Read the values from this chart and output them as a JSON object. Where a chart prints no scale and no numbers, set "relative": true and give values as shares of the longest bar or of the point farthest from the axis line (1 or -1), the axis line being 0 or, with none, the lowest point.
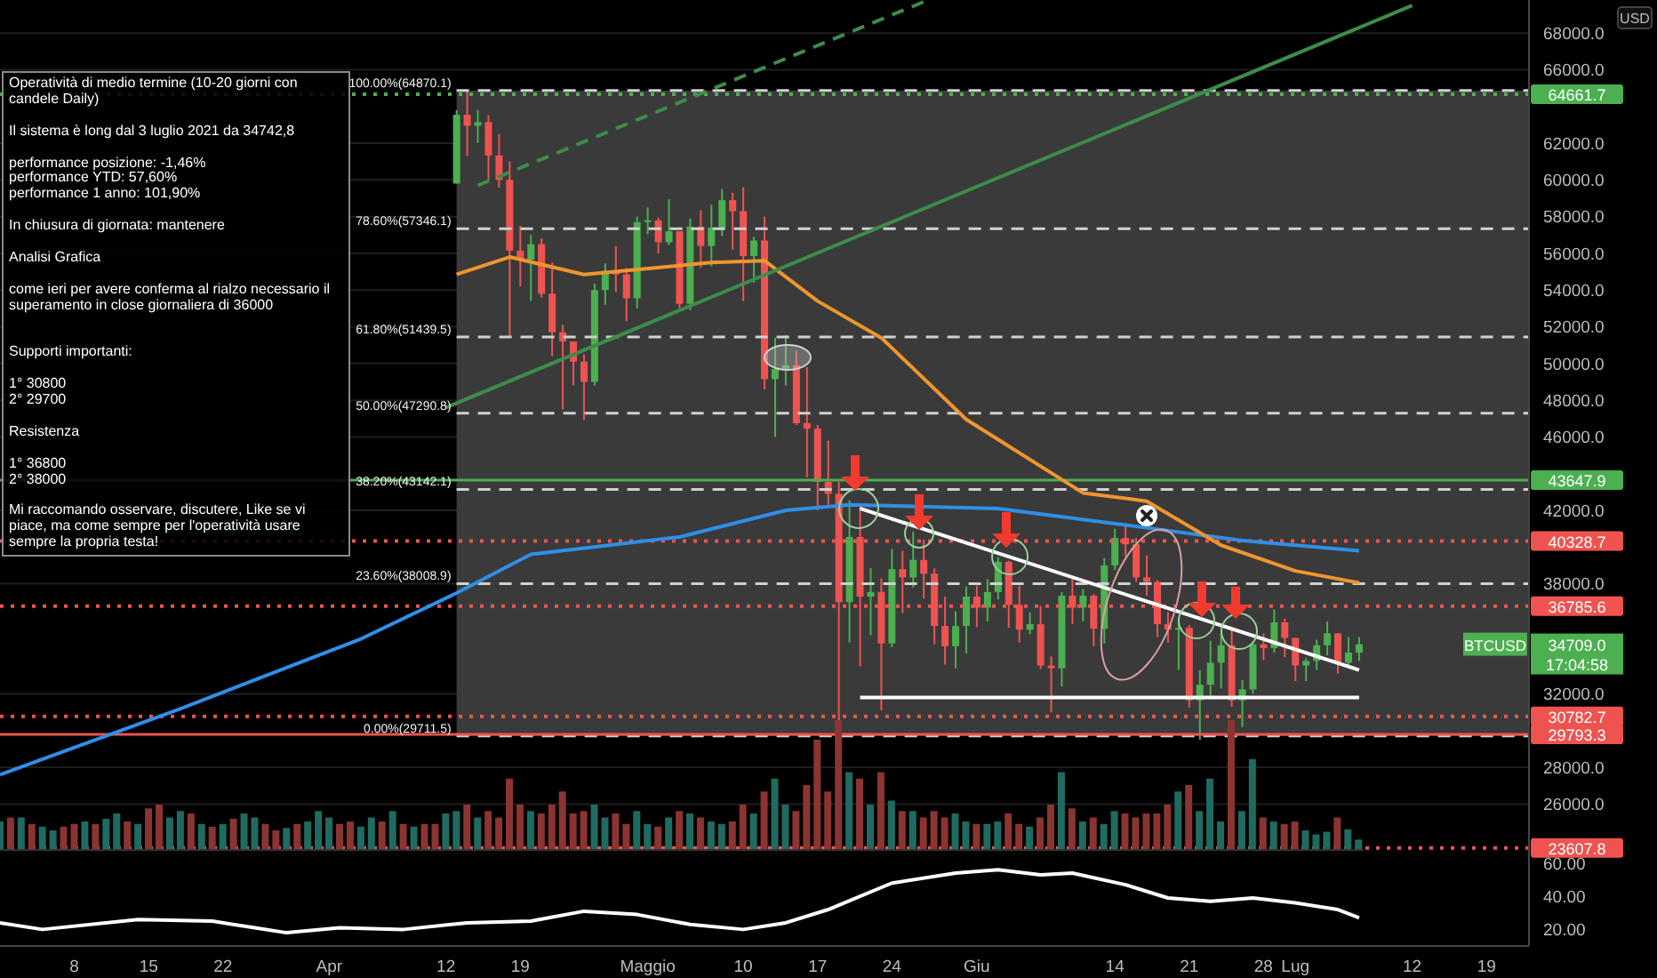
{
  "chart_data": [
    {
      "type": "candlestick",
      "ylabel": "USD",
      "grid": "y",
      "tick_labels": "y",
      "xlim": [
        "2021-03-01",
        "2021-07-23"
      ],
      "ylim": [
        23500,
        69800
      ],
      "yticks": [
        {
          "value": 26000,
          "label": "26000.0"
        },
        {
          "value": 28000,
          "label": "28000.0"
        },
        {
          "value": 32000,
          "label": "32000.0"
        },
        {
          "value": 38000,
          "label": "38000.0"
        },
        {
          "value": 42000,
          "label": "42000.0"
        },
        {
          "value": 46000,
          "label": "46000.0"
        },
        {
          "value": 48000,
          "label": "48000.0"
        },
        {
          "value": 50000,
          "label": "50000.0"
        },
        {
          "value": 52000,
          "label": "52000.0"
        },
        {
          "value": 54000,
          "label": "54000.0"
        },
        {
          "value": 56000,
          "label": "56000.0"
        },
        {
          "value": 58000,
          "label": "58000.0"
        },
        {
          "value": 60000,
          "label": "60000.0"
        },
        {
          "value": 62000,
          "label": "62000.0"
        },
        {
          "value": 66000,
          "label": "66000.0"
        },
        {
          "value": 68000,
          "label": "68000.0"
        }
      ],
      "x": [
        "2021-04-13",
        "2021-04-14",
        "2021-04-15",
        "2021-04-16",
        "2021-04-17",
        "2021-04-18",
        "2021-04-19",
        "2021-04-20",
        "2021-04-21",
        "2021-04-22",
        "2021-04-23",
        "2021-04-24",
        "2021-04-25",
        "2021-04-26",
        "2021-04-27",
        "2021-04-28",
        "2021-04-29",
        "2021-04-30",
        "2021-05-01",
        "2021-05-02",
        "2021-05-03",
        "2021-05-04",
        "2021-05-05",
        "2021-05-06",
        "2021-05-07",
        "2021-05-08",
        "2021-05-09",
        "2021-05-10",
        "2021-05-11",
        "2021-05-12",
        "2021-05-13",
        "2021-05-14",
        "2021-05-15",
        "2021-05-16",
        "2021-05-17",
        "2021-05-18",
        "2021-05-19",
        "2021-05-20",
        "2021-05-21",
        "2021-05-22",
        "2021-05-23",
        "2021-05-24",
        "2021-05-25",
        "2021-05-26",
        "2021-05-27",
        "2021-05-28",
        "2021-05-29",
        "2021-05-30",
        "2021-05-31",
        "2021-06-01",
        "2021-06-02",
        "2021-06-03",
        "2021-06-04",
        "2021-06-05",
        "2021-06-06",
        "2021-06-07",
        "2021-06-08",
        "2021-06-09",
        "2021-06-10",
        "2021-06-11",
        "2021-06-12",
        "2021-06-13",
        "2021-06-14",
        "2021-06-15",
        "2021-06-16",
        "2021-06-17",
        "2021-06-18",
        "2021-06-19",
        "2021-06-20",
        "2021-06-21",
        "2021-06-22",
        "2021-06-23",
        "2021-06-24",
        "2021-06-25",
        "2021-06-26",
        "2021-06-27",
        "2021-06-28",
        "2021-06-29",
        "2021-06-30",
        "2021-07-01",
        "2021-07-02",
        "2021-07-03",
        "2021-07-04",
        "2021-07-05",
        "2021-07-06",
        "2021-07-07"
      ],
      "ohlc": [
        [
          59800,
          63800,
          59800,
          63550
        ],
        [
          63550,
          64870,
          61300,
          62950
        ],
        [
          62950,
          63800,
          62020,
          63150
        ],
        [
          63150,
          63520,
          60000,
          61330
        ],
        [
          61330,
          62500,
          59580,
          60000
        ],
        [
          60000,
          61000,
          51500,
          56150
        ],
        [
          56150,
          57500,
          54200,
          55650
        ],
        [
          55650,
          57000,
          53400,
          56500
        ],
        [
          56500,
          56800,
          53600,
          53800
        ],
        [
          53800,
          55500,
          50400,
          51700
        ],
        [
          51700,
          52100,
          47500,
          51200
        ],
        [
          51200,
          51200,
          48800,
          50100
        ],
        [
          50100,
          50500,
          46930,
          49000
        ],
        [
          49000,
          54350,
          48800,
          54000
        ],
        [
          54000,
          55450,
          53200,
          55050
        ],
        [
          55050,
          56400,
          53900,
          54850
        ],
        [
          54850,
          55200,
          52300,
          53550
        ],
        [
          53550,
          58000,
          53000,
          57700
        ],
        [
          57700,
          58500,
          57050,
          57800
        ],
        [
          57800,
          57950,
          56000,
          56600
        ],
        [
          56600,
          58950,
          56450,
          57200
        ],
        [
          57200,
          57200,
          53000,
          53250
        ],
        [
          53250,
          57900,
          52900,
          57450
        ],
        [
          57450,
          58350,
          55200,
          56400
        ],
        [
          56400,
          58650,
          55300,
          57400
        ],
        [
          57400,
          59500,
          56950,
          58900
        ],
        [
          58900,
          59300,
          56200,
          58300
        ],
        [
          58300,
          59600,
          53400,
          55850
        ],
        [
          55850,
          56900,
          54400,
          56700
        ],
        [
          56700,
          58000,
          48600,
          49150
        ],
        [
          49150,
          51400,
          46000,
          49700
        ],
        [
          49700,
          51550,
          48800,
          49900
        ],
        [
          49900,
          50700,
          46650,
          46750
        ],
        [
          46750,
          49800,
          43800,
          46450
        ],
        [
          46450,
          46650,
          42000,
          43550
        ],
        [
          43550,
          45800,
          42250,
          42900
        ],
        [
          42900,
          43550,
          29711.5,
          37000
        ],
        [
          37000,
          42550,
          34800,
          40550
        ],
        [
          40550,
          42200,
          33500,
          37300
        ],
        [
          37300,
          38850,
          35200,
          37550
        ],
        [
          37550,
          38300,
          31100,
          34750
        ],
        [
          34750,
          39900,
          34550,
          38800
        ],
        [
          38800,
          39800,
          36400,
          38350
        ],
        [
          38350,
          40850,
          37800,
          39300
        ],
        [
          39300,
          40400,
          37200,
          38550
        ],
        [
          38550,
          38850,
          34700,
          35700
        ],
        [
          35700,
          37300,
          33600,
          34600
        ],
        [
          34600,
          36500,
          33400,
          35700
        ],
        [
          35700,
          37850,
          34200,
          37300
        ],
        [
          37300,
          37900,
          35650,
          36700
        ],
        [
          36700,
          38250,
          35950,
          37550
        ],
        [
          37550,
          39450,
          37150,
          39200
        ],
        [
          39200,
          39250,
          35600,
          36850
        ],
        [
          36850,
          37900,
          34800,
          35500
        ],
        [
          35500,
          36450,
          35250,
          35800
        ],
        [
          35800,
          36800,
          33350,
          33550
        ],
        [
          33550,
          34050,
          31000,
          33400
        ],
        [
          33400,
          37550,
          32400,
          37350
        ],
        [
          37350,
          38400,
          35800,
          36700
        ],
        [
          36700,
          37700,
          35950,
          37350
        ],
        [
          37350,
          37450,
          34600,
          35550
        ],
        [
          35550,
          39400,
          34750,
          39000
        ],
        [
          39000,
          41000,
          38750,
          40500
        ],
        [
          40500,
          41300,
          39500,
          40150
        ],
        [
          40150,
          40500,
          38100,
          38350
        ],
        [
          38350,
          39550,
          37350,
          38100
        ],
        [
          38100,
          38200,
          35100,
          35800
        ],
        [
          35800,
          36450,
          34800,
          35500
        ],
        [
          35500,
          36100,
          33300,
          35600
        ],
        [
          35600,
          35750,
          31250,
          31650
        ],
        [
          31650,
          33300,
          29500,
          32500
        ],
        [
          32500,
          34900,
          31700,
          33700
        ],
        [
          33700,
          35300,
          32300,
          34650
        ],
        [
          34650,
          35500,
          31300,
          31650
        ],
        [
          31650,
          32750,
          30200,
          32250
        ],
        [
          32250,
          34750,
          32000,
          34700
        ],
        [
          34700,
          35300,
          33850,
          34500
        ],
        [
          34500,
          36600,
          34250,
          35900
        ],
        [
          35900,
          36100,
          34000,
          35050
        ],
        [
          35050,
          35050,
          32700,
          33550
        ],
        [
          33550,
          33950,
          32700,
          33800
        ],
        [
          33800,
          34950,
          33300,
          34650
        ],
        [
          34650,
          35950,
          34100,
          35300
        ],
        [
          35300,
          35300,
          33100,
          33700
        ],
        [
          33700,
          35100,
          33500,
          34250
        ],
        [
          34250,
          35100,
          33800,
          34709
        ]
      ],
      "colors": [
        "#4caf50",
        "#ef5350",
        "#4caf50",
        "#ef5350",
        "#ef5350",
        "#ef5350",
        "#ef5350",
        "#4caf50",
        "#ef5350",
        "#ef5350",
        "#ef5350",
        "#ef5350",
        "#ef5350",
        "#4caf50",
        "#4caf50",
        "#ef5350",
        "#ef5350",
        "#4caf50",
        "#4caf50",
        "#ef5350",
        "#4caf50",
        "#ef5350",
        "#4caf50",
        "#ef5350",
        "#4caf50",
        "#4caf50",
        "#ef5350",
        "#ef5350",
        "#4caf50",
        "#ef5350",
        "#4caf50",
        "#4caf50",
        "#ef5350",
        "#ef5350",
        "#ef5350",
        "#ef5350",
        "#ef5350",
        "#4caf50",
        "#ef5350",
        "#4caf50",
        "#ef5350",
        "#4caf50",
        "#ef5350",
        "#4caf50",
        "#ef5350",
        "#ef5350",
        "#ef5350",
        "#4caf50",
        "#4caf50",
        "#ef5350",
        "#4caf50",
        "#4caf50",
        "#ef5350",
        "#ef5350",
        "#4caf50",
        "#ef5350",
        "#ef5350",
        "#4caf50",
        "#ef5350",
        "#4caf50",
        "#ef5350",
        "#4caf50",
        "#4caf50",
        "#ef5350",
        "#ef5350",
        "#ef5350",
        "#ef5350",
        "#ef5350",
        "#4caf50",
        "#ef5350",
        "#4caf50",
        "#4caf50",
        "#4caf50",
        "#ef5350",
        "#4caf50",
        "#4caf50",
        "#ef5350",
        "#4caf50",
        "#ef5350",
        "#ef5350",
        "#4caf50",
        "#4caf50",
        "#4caf50",
        "#ef5350",
        "#4caf50",
        "#4caf50"
      ],
      "series": [
        {
          "type": "line",
          "color": "#2f8fe8",
          "x": [
            "2021-03-01",
            "2021-03-18",
            "2021-04-04",
            "2021-04-13",
            "2021-04-20",
            "2021-05-04",
            "2021-05-14",
            "2021-05-20",
            "2021-06-03",
            "2021-06-17",
            "2021-06-26",
            "2021-07-07"
          ],
          "values": [
            27600,
            31200,
            35000,
            37500,
            39600,
            40550,
            42000,
            42300,
            42100,
            41050,
            40350,
            39800
          ]
        },
        {
          "type": "line",
          "color": "#f0962e",
          "x": [
            "2021-04-13",
            "2021-04-18",
            "2021-04-25",
            "2021-05-07",
            "2021-05-12",
            "2021-05-17",
            "2021-05-23",
            "2021-05-31",
            "2021-06-11",
            "2021-06-17",
            "2021-06-24",
            "2021-07-01",
            "2021-07-07"
          ],
          "values": [
            54850,
            55800,
            54850,
            55500,
            55600,
            53400,
            51400,
            46950,
            42950,
            42500,
            40100,
            38700,
            38050
          ]
        },
        {
          "type": "line",
          "color": "#3d8c4a",
          "x": [
            "2021-04-12",
            "2021-07-12"
          ],
          "values": [
            47600,
            69500
          ]
        },
        {
          "type": "line",
          "color": "#3d8c4a",
          "line_style": "dashed",
          "x": [
            "2021-04-15",
            "2021-05-27"
          ],
          "values": [
            59700,
            69700
          ]
        },
        {
          "type": "line",
          "color": "#ffffff",
          "x": [
            "2021-05-21",
            "2021-07-07"
          ],
          "values": [
            42100,
            33300
          ]
        },
        {
          "type": "line",
          "color": "#ffffff",
          "x": [
            "2021-05-21",
            "2021-07-07"
          ],
          "values": [
            31800,
            31800
          ]
        }
      ],
      "bands": [
        {
          "axis": "y",
          "from": 29711.5,
          "to": 64870.1,
          "color": "#3a3a3a"
        }
      ],
      "ref_lines": [
        {
          "axis": "y",
          "value": 64870.1,
          "label": "100.00%(64870.1)",
          "color": "#d0d0d0",
          "line_style": "dashed"
        },
        {
          "axis": "y",
          "value": 57346.1,
          "label": "78.60%(57346.1)",
          "color": "#d0d0d0",
          "line_style": "dashed"
        },
        {
          "axis": "y",
          "value": 51439.5,
          "label": "61.80%(51439.5)",
          "color": "#d0d0d0",
          "line_style": "dashed"
        },
        {
          "axis": "y",
          "value": 47290.8,
          "label": "50.00%(47290.8)",
          "color": "#d0d0d0",
          "line_style": "dashed"
        },
        {
          "axis": "y",
          "value": 43142.1,
          "label": "38.20%(43142.1)",
          "color": "#d0d0d0",
          "line_style": "dashed"
        },
        {
          "axis": "y",
          "value": 38008.9,
          "label": "23.60%(38008.9)",
          "color": "#d0d0d0",
          "line_style": "dashed"
        },
        {
          "axis": "y",
          "value": 29711.5,
          "label": "0.00%(29711.5)",
          "color": "#d0d0d0",
          "line_style": "dashed"
        },
        {
          "axis": "y",
          "value": 64661.7,
          "label": "64661.7",
          "color": "#4caf50",
          "line_style": "dotted"
        },
        {
          "axis": "y",
          "value": 43647.9,
          "label": "43647.9",
          "color": "#4caf50",
          "line_style": "solid"
        },
        {
          "axis": "y",
          "value": 40328.7,
          "label": "40328.7",
          "color": "#ef5350",
          "line_style": "dotted"
        },
        {
          "axis": "y",
          "value": 36785.6,
          "label": "36785.6",
          "color": "#ef5350",
          "line_style": "dotted"
        },
        {
          "axis": "y",
          "value": 30782.7,
          "label": "30782.7",
          "color": "#ef5350",
          "line_style": "dotted"
        },
        {
          "axis": "y",
          "value": 29793.3,
          "label": "29793.3",
          "color": "#ef5350",
          "line_style": "solid"
        },
        {
          "axis": "y",
          "value": 23607.8,
          "label": "23607.8",
          "color": "#ef5350",
          "line_style": "dotted"
        }
      ],
      "annotations": [
        "Operatività di medio termine (10-20 giorni con candele Daily)\n\nIl sistema è long dal 3 luglio 2021 da 34742,8\n\nperformance posizione: -1,46%\nperformance YTD: 57,60%\nperformance 1 anno: 101,90%\n\nIn chiusura di giornata: mantenere\n\nAnalisi Grafica\n\ncome ieri per avere conferma al rialzo necessario il superamento in close giornaliera di 36000\n\n\nSupporti importanti:\n\n1° 30800\n2° 29700\n\nResistenza\n\n1° 36800\n2° 38000\n\nMi raccomando osservare, discutere, Like se vi piace, ma come sempre per l'operatività usare sempre la propria testa!",
        {
          "text": "BTCUSD",
          "y": 34709
        },
        "34709.0",
        "17:04:58"
      ]
    },
    {
      "type": "bar",
      "relative": true,
      "tick_labels": false,
      "categories": [
        null,
        null,
        null,
        null,
        null,
        null,
        null,
        null,
        null,
        null,
        null,
        null,
        null,
        null,
        null,
        null,
        null,
        null,
        null,
        null,
        null,
        null,
        null,
        null,
        null,
        null,
        null,
        null,
        null,
        null,
        null,
        null,
        null,
        null,
        null,
        null,
        null,
        null,
        null,
        null,
        null,
        null,
        null,
        null,
        null,
        null,
        null,
        null,
        null,
        null,
        null,
        null,
        null,
        null,
        null,
        null,
        null,
        null,
        null,
        null,
        null,
        null,
        null,
        null,
        null,
        null,
        null,
        null,
        null,
        null,
        null,
        null,
        null,
        null,
        null,
        null,
        null,
        null,
        null,
        null,
        null,
        null,
        null,
        null,
        null,
        null,
        null,
        null,
        null,
        null,
        null,
        null,
        null,
        null,
        null,
        null,
        null,
        null,
        null,
        null,
        null,
        null,
        null,
        null,
        null,
        null,
        null,
        null,
        null,
        null,
        null,
        null,
        null,
        null,
        null,
        null,
        null,
        null,
        null,
        null,
        null,
        null,
        null,
        null,
        null,
        null,
        null,
        null,
        null
      ],
      "values": [
        0.22,
        0.25,
        0.25,
        0.2,
        0.18,
        0.15,
        0.18,
        0.2,
        0.22,
        0.2,
        0.24,
        0.28,
        0.22,
        0.2,
        0.32,
        0.35,
        0.25,
        0.3,
        0.28,
        0.2,
        0.18,
        0.2,
        0.24,
        0.28,
        0.25,
        0.2,
        0.15,
        0.17,
        0.2,
        0.22,
        0.3,
        0.25,
        0.2,
        0.22,
        0.18,
        0.25,
        0.22,
        0.3,
        0.2,
        0.18,
        0.2,
        0.2,
        0.28,
        0.3,
        0.35,
        0.25,
        0.3,
        0.25,
        0.55,
        0.35,
        0.3,
        0.28,
        0.35,
        0.45,
        0.28,
        0.3,
        0.35,
        0.25,
        0.28,
        0.2,
        0.3,
        0.2,
        0.18,
        0.25,
        0.3,
        0.28,
        0.25,
        0.22,
        0.2,
        0.22,
        0.35,
        0.28,
        0.45,
        0.55,
        0.35,
        0.3,
        0.5,
        0.85,
        0.45,
        1,
        0.6,
        0.55,
        0.35,
        0.6,
        0.38,
        0.3,
        0.3,
        0.25,
        0.3,
        0.25,
        0.28,
        0.22,
        0.2,
        0.2,
        0.22,
        0.28,
        0.2,
        0.18,
        0.25,
        0.35,
        0.6,
        0.32,
        0.22,
        0.25,
        0.2,
        0.3,
        0.28,
        0.25,
        0.28,
        0.28,
        0.35,
        0.45,
        0.5,
        0.3,
        0.55,
        0.22,
        1,
        0.3,
        0.7,
        0.25,
        0.22,
        0.2,
        0.22,
        0.15,
        0.12,
        0.14,
        0.25,
        0.16,
        0.08
      ],
      "colors": [
        "#1f6b61",
        "#8c3431",
        "#1f6b61",
        "#8c3431",
        "#1f6b61",
        "#1f6b61",
        "#8c3431",
        "#8c3431",
        "#1f6b61",
        "#8c3431",
        "#1f6b61",
        "#1f6b61",
        "#8c3431",
        "#1f6b61",
        "#8c3431",
        "#8c3431",
        "#1f6b61",
        "#1f6b61",
        "#8c3431",
        "#1f6b61",
        "#8c3431",
        "#1f6b61",
        "#8c3431",
        "#1f6b61",
        "#1f6b61",
        "#8c3431",
        "#8c3431",
        "#1f6b61",
        "#8c3431",
        "#1f6b61",
        "#1f6b61",
        "#1f6b61",
        "#8c3431",
        "#8c3431",
        "#1f6b61",
        "#1f6b61",
        "#8c3431",
        "#1f6b61",
        "#8c3431",
        "#1f6b61",
        "#8c3431",
        "#8c3431",
        "#1f6b61",
        "#1f6b61",
        "#8c3431",
        "#1f6b61",
        "#8c3431",
        "#8c3431",
        "#8c3431",
        "#8c3431",
        "#1f6b61",
        "#8c3431",
        "#8c3431",
        "#8c3431",
        "#8c3431",
        "#8c3431",
        "#1f6b61",
        "#1f6b61",
        "#8c3431",
        "#8c3431",
        "#1f6b61",
        "#1f6b61",
        "#8c3431",
        "#1f6b61",
        "#8c3431",
        "#1f6b61",
        "#8c3431",
        "#1f6b61",
        "#1f6b61",
        "#8c3431",
        "#8c3431",
        "#1f6b61",
        "#8c3431",
        "#1f6b61",
        "#1f6b61",
        "#8c3431",
        "#8c3431",
        "#8c3431",
        "#8c3431",
        "#8c3431",
        "#1f6b61",
        "#8c3431",
        "#1f6b61",
        "#8c3431",
        "#1f6b61",
        "#8c3431",
        "#1f6b61",
        "#8c3431",
        "#8c3431",
        "#8c3431",
        "#1f6b61",
        "#1f6b61",
        "#8c3431",
        "#1f6b61",
        "#1f6b61",
        "#8c3431",
        "#8c3431",
        "#1f6b61",
        "#8c3431",
        "#8c3431",
        "#1f6b61",
        "#8c3431",
        "#1f6b61",
        "#8c3431",
        "#1f6b61",
        "#1f6b61",
        "#8c3431",
        "#8c3431",
        "#8c3431",
        "#8c3431",
        "#8c3431",
        "#1f6b61",
        "#8c3431",
        "#1f6b61",
        "#1f6b61",
        "#1f6b61",
        "#8c3431",
        "#1f6b61",
        "#1f6b61",
        "#8c3431",
        "#1f6b61",
        "#8c3431",
        "#8c3431",
        "#1f6b61",
        "#1f6b61",
        "#1f6b61",
        "#8c3431",
        "#1f6b61",
        "#1f6b61"
      ]
    },
    {
      "type": "line",
      "xlim": [
        "2021-03-01",
        "2021-07-23"
      ],
      "ylim": [
        10,
        68
      ],
      "yticks": [
        {
          "value": 20,
          "label": "20.00"
        },
        {
          "value": 40,
          "label": "40.00"
        },
        {
          "value": 60,
          "label": "60.00"
        }
      ],
      "xticks": [
        {
          "value": "2021-03-08",
          "label": "8"
        },
        {
          "value": "2021-03-15",
          "label": "15"
        },
        {
          "value": "2021-03-22",
          "label": "22"
        },
        {
          "value": "2021-04-01",
          "label": "Apr"
        },
        {
          "value": "2021-04-12",
          "label": "12"
        },
        {
          "value": "2021-04-19",
          "label": "19"
        },
        {
          "value": "2021-05-01",
          "label": "Maggio"
        },
        {
          "value": "2021-05-10",
          "label": "10"
        },
        {
          "value": "2021-05-17",
          "label": "17"
        },
        {
          "value": "2021-05-24",
          "label": "24"
        },
        {
          "value": "2021-06-01",
          "label": "Giu"
        },
        {
          "value": "2021-06-14",
          "label": "14"
        },
        {
          "value": "2021-06-21",
          "label": "21"
        },
        {
          "value": "2021-06-28",
          "label": "28"
        },
        {
          "value": "2021-07-01",
          "label": "Lug"
        },
        {
          "value": "2021-07-12",
          "label": "12"
        },
        {
          "value": "2021-07-19",
          "label": "19"
        }
      ],
      "series": [
        {
          "color": "#ffffff",
          "x": [
            "2021-03-01",
            "2021-03-05",
            "2021-03-14",
            "2021-03-21",
            "2021-03-25",
            "2021-03-28",
            "2021-04-02",
            "2021-04-08",
            "2021-04-14",
            "2021-04-20",
            "2021-04-25",
            "2021-04-30",
            "2021-05-05",
            "2021-05-10",
            "2021-05-14",
            "2021-05-18",
            "2021-05-24",
            "2021-05-30",
            "2021-06-03",
            "2021-06-07",
            "2021-06-10",
            "2021-06-15",
            "2021-06-19",
            "2021-06-23",
            "2021-06-27",
            "2021-07-01",
            "2021-07-05",
            "2021-07-07"
          ],
          "values": [
            24,
            20,
            26,
            25,
            21,
            18,
            21,
            20,
            24,
            25,
            31,
            29,
            23,
            20,
            24,
            32,
            48,
            54,
            56,
            53,
            54,
            47,
            39,
            37,
            39,
            36,
            32,
            27
          ]
        }
      ]
    }
  ]
}
